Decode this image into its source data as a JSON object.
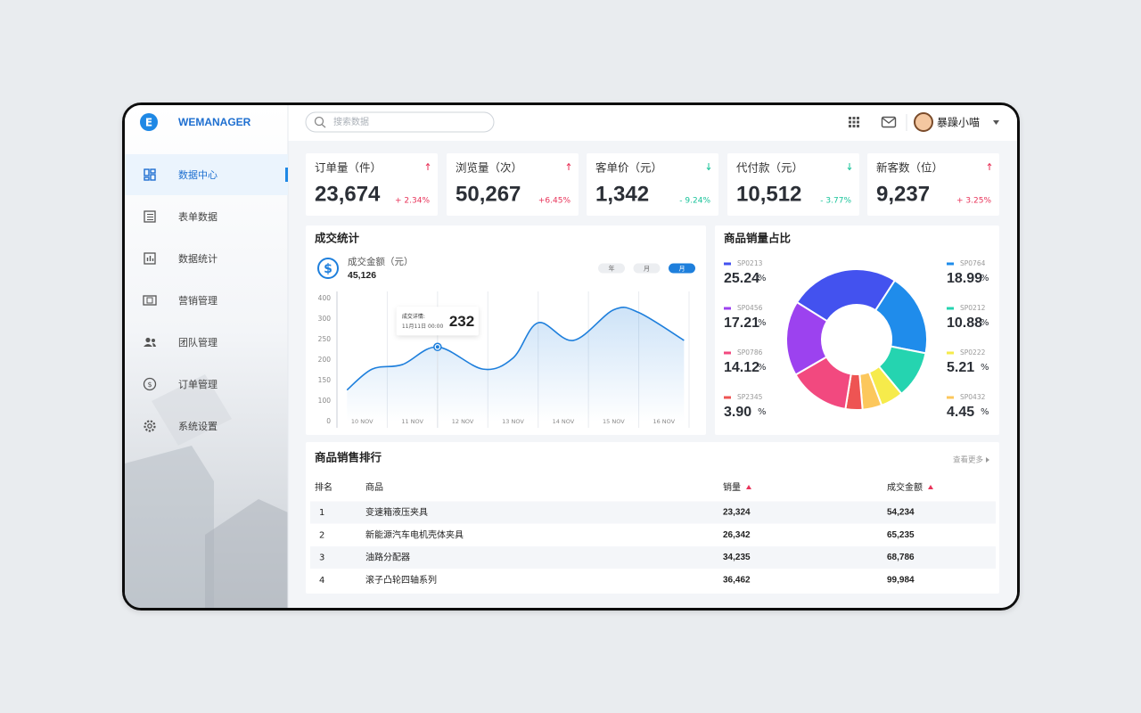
{
  "brand": "WEMANAGER",
  "logo": "E",
  "search_placeholder": "搜索数据",
  "user": "暴躁小喵",
  "nav": {
    "active": 0,
    "items": [
      "数据中心",
      "表单数据",
      "数据统计",
      "营销管理",
      "团队管理",
      "订单管理",
      "系统设置"
    ]
  },
  "kpis": [
    {
      "label": "订单量（件）",
      "value": "23,674",
      "change": "+ 2.34%",
      "trend": "up"
    },
    {
      "label": "浏览量（次）",
      "value": "50,267",
      "change": "+6.45%",
      "trend": "up"
    },
    {
      "label": "客单价（元）",
      "value": "1,342",
      "change": "- 9.24%",
      "trend": "down"
    },
    {
      "label": "代付款（元）",
      "value": "10,512",
      "change": "- 3.77%",
      "trend": "down"
    },
    {
      "label": "新客数（位）",
      "value": "9,237",
      "change": "+ 3.25%",
      "trend": "up"
    }
  ],
  "chart_data": [
    {
      "type": "line",
      "title": "成交统计",
      "metric_label": "成交金额（元）",
      "total": "45,126",
      "periods": [
        "年",
        "月",
        "月"
      ],
      "active_period": 2,
      "tooltip_title": "成交详情:",
      "tooltip_time": "11月11日 00:00",
      "tooltip_index": 3,
      "x": [
        9.7,
        10.2,
        10.8,
        11.5,
        12.4,
        13.0,
        13.5,
        14.2,
        15.0,
        15.5,
        16.4
      ],
      "values": [
        127,
        178,
        189,
        232,
        178,
        205,
        291,
        248,
        345,
        332,
        248
      ],
      "color": "#1e7fdc",
      "xlim": [
        9.5,
        16.5
      ],
      "xticks": [
        {
          "value": 10,
          "label": "10 NOV"
        },
        {
          "value": 11,
          "label": "11 NOV"
        },
        {
          "value": 12,
          "label": "12 NOV"
        },
        {
          "value": 13,
          "label": "13 NOV"
        },
        {
          "value": 14,
          "label": "14 NOV"
        },
        {
          "value": 15,
          "label": "15 NOV"
        },
        {
          "value": 16,
          "label": "16 NOV"
        }
      ],
      "ylim": [
        0,
        400
      ],
      "yticks": [
        0,
        100,
        150,
        200,
        250,
        300,
        400
      ],
      "grid": true
    },
    {
      "type": "pie",
      "title": "商品销量占比",
      "donut": true,
      "unit": "%",
      "categories": [
        "SP0213",
        "SP0764",
        "SP0212",
        "SP0222",
        "SP0432",
        "SP2345",
        "SP0786",
        "SP0456"
      ],
      "values": [
        25.24,
        18.99,
        10.88,
        5.21,
        4.45,
        3.9,
        14.12,
        17.21
      ],
      "value_labels": [
        "25.24",
        "18.99",
        "10.88",
        "5.21",
        "4.45",
        "3.90",
        "14.12",
        "17.21"
      ],
      "colors": [
        "#4352ef",
        "#1f8ceb",
        "#25d4b0",
        "#f6eb4b",
        "#fcc75c",
        "#ee5453",
        "#f2497f",
        "#9c42ef"
      ]
    }
  ],
  "table": {
    "title": "商品销售排行",
    "more": "查看更多",
    "columns": [
      "排名",
      "商品",
      "销量",
      "成交金额"
    ],
    "rows": [
      [
        "1",
        "变速箱液压夹具",
        "23,324",
        "54,234"
      ],
      [
        "2",
        "新能源汽车电机壳体夹具",
        "26,342",
        "65,235"
      ],
      [
        "3",
        "油路分配器",
        "34,235",
        "68,786"
      ],
      [
        "4",
        "滚子凸轮四轴系列",
        "36,462",
        "99,984"
      ]
    ]
  }
}
